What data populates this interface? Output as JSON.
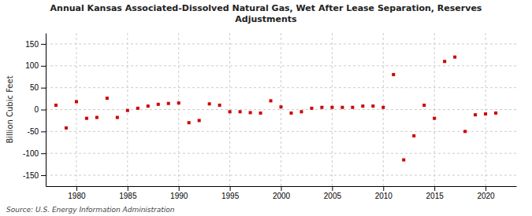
{
  "chart_data": {
    "type": "scatter",
    "title": "Annual Kansas Associated-Dissolved Natural Gas, Wet After Lease Separation, Reserves\nAdjustments",
    "y_label": "Billion Cubic Feet",
    "annotations": [
      "Source: U.S. Energy Information Administration"
    ],
    "color": "#cc0000",
    "marker": "square",
    "grid": true,
    "xlim": [
      1977,
      2023
    ],
    "ylim": [
      -175,
      175
    ],
    "xticks": [
      1980,
      1985,
      1990,
      1995,
      2000,
      2005,
      2010,
      2015,
      2020
    ],
    "yticks": [
      -150,
      -100,
      -50,
      0,
      50,
      100,
      150
    ],
    "x": [
      1978,
      1979,
      1980,
      1981,
      1982,
      1983,
      1984,
      1985,
      1986,
      1987,
      1988,
      1989,
      1990,
      1991,
      1992,
      1993,
      1994,
      1995,
      1996,
      1997,
      1998,
      1999,
      2000,
      2001,
      2002,
      2003,
      2004,
      2005,
      2006,
      2007,
      2008,
      2009,
      2010,
      2011,
      2012,
      2013,
      2014,
      2015,
      2016,
      2017,
      2018,
      2019,
      2020,
      2021
    ],
    "values": [
      10,
      -42,
      18,
      -20,
      -18,
      26,
      -18,
      -2,
      3,
      8,
      12,
      14,
      15,
      -30,
      -25,
      13,
      10,
      -5,
      -5,
      -7,
      -8,
      20,
      6,
      -8,
      -5,
      3,
      5,
      5,
      5,
      5,
      8,
      8,
      5,
      80,
      -115,
      -60,
      10,
      -20,
      110,
      120,
      -50,
      -12,
      -10,
      -8
    ]
  }
}
